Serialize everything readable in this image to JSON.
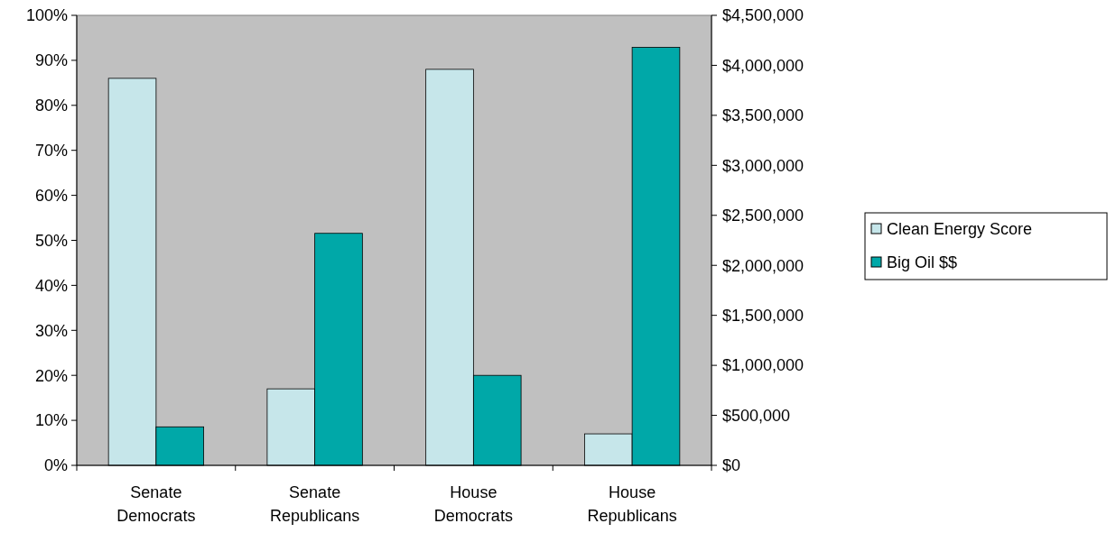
{
  "chart_data": {
    "type": "bar",
    "categories": [
      "Senate Democrats",
      "Senate Republicans",
      "House Democrats",
      "House Republicans"
    ],
    "series": [
      {
        "name": "Clean Energy Score",
        "color": "#c6e6ea",
        "values": [
          86,
          17,
          88,
          7
        ]
      },
      {
        "name": "Big Oil $$",
        "color": "#00a8a8",
        "axis": "y2",
        "values": [
          385000,
          2320000,
          900000,
          4180000
        ]
      }
    ],
    "ylim": [
      0,
      100
    ],
    "yticks": [
      {
        "value": 0,
        "label": "0%"
      },
      {
        "value": 10,
        "label": "10%"
      },
      {
        "value": 20,
        "label": "20%"
      },
      {
        "value": 30,
        "label": "30%"
      },
      {
        "value": 40,
        "label": "40%"
      },
      {
        "value": 50,
        "label": "50%"
      },
      {
        "value": 60,
        "label": "60%"
      },
      {
        "value": 70,
        "label": "70%"
      },
      {
        "value": 80,
        "label": "80%"
      },
      {
        "value": 90,
        "label": "90%"
      },
      {
        "value": 100,
        "label": "100%"
      }
    ],
    "y2lim": [
      0,
      4500000
    ],
    "y2ticks": [
      {
        "value": 0,
        "label": "$0"
      },
      {
        "value": 500000,
        "label": "$500,000"
      },
      {
        "value": 1000000,
        "label": "$1,000,000"
      },
      {
        "value": 1500000,
        "label": "$1,500,000"
      },
      {
        "value": 2000000,
        "label": "$2,000,000"
      },
      {
        "value": 2500000,
        "label": "$2,500,000"
      },
      {
        "value": 3000000,
        "label": "$3,000,000"
      },
      {
        "value": 3500000,
        "label": "$3,500,000"
      },
      {
        "value": 4000000,
        "label": "$4,000,000"
      },
      {
        "value": 4500000,
        "label": "$4,500,000"
      }
    ],
    "grid": false,
    "legend": "right"
  }
}
